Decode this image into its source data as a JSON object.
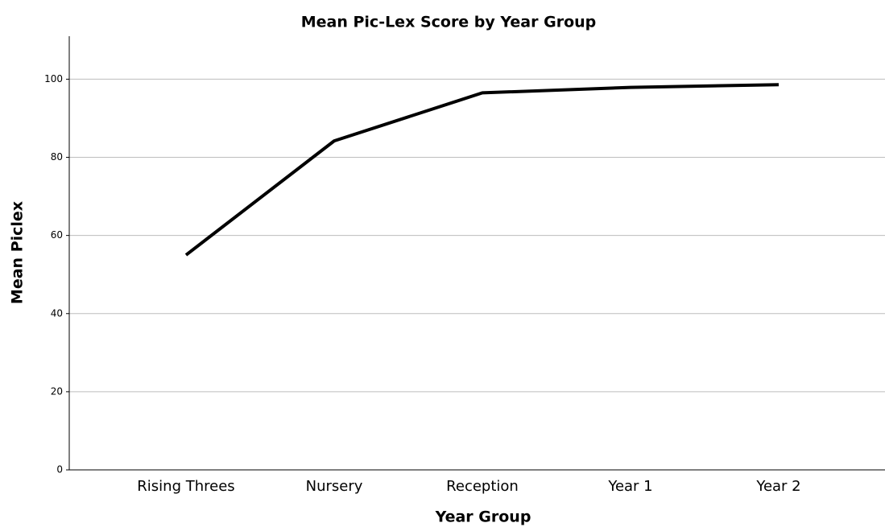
{
  "chart_data": {
    "type": "line",
    "title": "Mean Pic-Lex Score by Year Group",
    "x_label": "Year Group",
    "y_label": "Mean Piclex",
    "categories": [
      "Rising Threes",
      "Nursery",
      "Reception",
      "Year 1",
      "Year 2"
    ],
    "series": [
      {
        "name": "Mean Piclex",
        "color": "#000000",
        "values": [
          55,
          84.2,
          96.5,
          97.9,
          98.6
        ]
      }
    ],
    "ylim": [
      0,
      111
    ],
    "yticks": [
      0,
      20,
      40,
      60,
      80,
      100
    ],
    "grid": true
  }
}
